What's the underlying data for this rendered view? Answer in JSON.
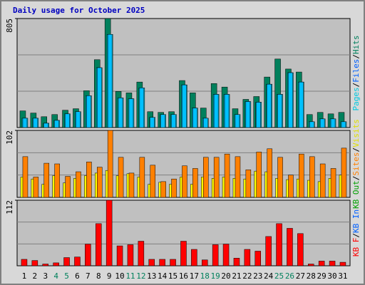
{
  "title": "Daily usage for October 2025",
  "separator": "/",
  "chart_data": [
    {
      "type": "bar",
      "ylim": [
        0,
        805
      ],
      "yticks": [
        805
      ],
      "grid": true,
      "legend": [
        {
          "text": "Pages",
          "color": "#00c8e0"
        },
        {
          "text": "Files",
          "color": "#0060ff"
        },
        {
          "text": "Hits",
          "color": "#00805c"
        }
      ],
      "series": [
        {
          "name": "Hits",
          "color": "#00805c",
          "values": [
            123,
            107,
            80,
            96,
            128,
            139,
            272,
            501,
            805,
            267,
            256,
            336,
            117,
            112,
            117,
            347,
            256,
            144,
            325,
            299,
            139,
            208,
            229,
            373,
            506,
            432,
            410,
            96,
            112,
            101,
            112
          ]
        },
        {
          "name": "Files",
          "color": "#00e0ff",
          "values": [
            69,
            69,
            32,
            53,
            101,
            117,
            235,
            442,
            688,
            219,
            213,
            293,
            75,
            96,
            96,
            315,
            144,
            69,
            245,
            245,
            96,
            192,
            187,
            320,
            245,
            405,
            336,
            43,
            64,
            64,
            43
          ]
        },
        {
          "name": "Pages",
          "color": "#00c0ff",
          "values": [
            69,
            69,
            32,
            53,
            101,
            117,
            235,
            442,
            688,
            219,
            213,
            293,
            75,
            96,
            96,
            315,
            144,
            69,
            245,
            245,
            96,
            192,
            187,
            320,
            245,
            405,
            336,
            43,
            64,
            64,
            43
          ]
        }
      ]
    },
    {
      "type": "bar",
      "ylim": [
        0,
        102
      ],
      "yticks": [
        102
      ],
      "grid": true,
      "legend": [
        {
          "text": "KB Out",
          "color": "#00a000"
        },
        {
          "text": "Sites",
          "color": "#ff8000"
        },
        {
          "text": "Visits",
          "color": "#e0e000"
        }
      ],
      "series": [
        {
          "name": "Visits",
          "color": "#ffff00",
          "values": [
            31,
            28,
            20,
            33,
            22,
            29,
            33,
            37,
            41,
            33,
            36,
            31,
            20,
            23,
            20,
            31,
            20,
            31,
            29,
            31,
            29,
            28,
            40,
            39,
            29,
            27,
            28,
            26,
            24,
            29,
            34
          ]
        },
        {
          "name": "Sites",
          "color": "#ff8000",
          "values": [
            62,
            31,
            52,
            51,
            32,
            39,
            54,
            46,
            102,
            61,
            37,
            61,
            49,
            24,
            28,
            48,
            44,
            61,
            61,
            66,
            62,
            42,
            69,
            74,
            61,
            34,
            66,
            62,
            51,
            44,
            75
          ]
        }
      ]
    },
    {
      "type": "bar",
      "ylim": [
        0,
        112
      ],
      "yticks": [
        112
      ],
      "grid": true,
      "legend": [
        {
          "text": "KB F",
          "color": "#ff0000"
        },
        {
          "text": "KB In",
          "color": "#0060ff"
        }
      ],
      "categories": [
        "1",
        "2",
        "3",
        "4",
        "5",
        "6",
        "7",
        "8",
        "9",
        "10",
        "11",
        "12",
        "13",
        "14",
        "15",
        "16",
        "17",
        "18",
        "19",
        "20",
        "21",
        "22",
        "23",
        "24",
        "25",
        "26",
        "27",
        "28",
        "29",
        "30",
        "31"
      ],
      "category_colors": [
        "#000000",
        "#000000",
        "#000000",
        "#00805c",
        "#00805c",
        "#000000",
        "#000000",
        "#000000",
        "#000000",
        "#000000",
        "#00805c",
        "#00805c",
        "#000000",
        "#000000",
        "#000000",
        "#000000",
        "#000000",
        "#00805c",
        "#00805c",
        "#000000",
        "#000000",
        "#000000",
        "#000000",
        "#000000",
        "#00805c",
        "#00805c",
        "#000000",
        "#000000",
        "#000000",
        "#000000",
        "#000000"
      ],
      "series": [
        {
          "name": "KB F",
          "color": "#ff0000",
          "values": [
            11,
            9,
            3,
            5,
            14,
            15,
            37,
            72,
            112,
            34,
            36,
            42,
            11,
            11,
            11,
            42,
            28,
            10,
            36,
            37,
            13,
            28,
            25,
            50,
            72,
            64,
            55,
            3,
            8,
            8,
            6
          ]
        }
      ]
    }
  ]
}
